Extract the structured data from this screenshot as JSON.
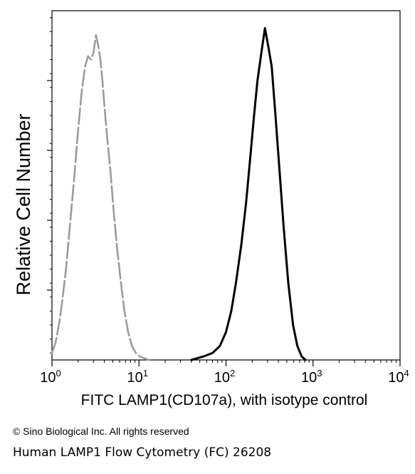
{
  "chart_data": {
    "type": "line",
    "xlabel": "FITC LAMP1(CD107a), with isotype control",
    "ylabel": "Relative Cell Number",
    "x_scale": "log",
    "xlim": [
      1,
      10000
    ],
    "ylim": [
      0,
      1
    ],
    "x_ticks": [
      {
        "value": 1,
        "base": "10",
        "exp": "0"
      },
      {
        "value": 10,
        "base": "10",
        "exp": "1"
      },
      {
        "value": 100,
        "base": "10",
        "exp": "2"
      },
      {
        "value": 1000,
        "base": "10",
        "exp": "3"
      },
      {
        "value": 10000,
        "base": "10",
        "exp": "4"
      }
    ],
    "grid": false,
    "series": [
      {
        "style": "dashed",
        "color": "#9b9b9b",
        "x": [
          1.0,
          1.1,
          1.2,
          1.3,
          1.45,
          1.6,
          1.8,
          2.0,
          2.2,
          2.4,
          2.6,
          2.8,
          3.0,
          3.2,
          3.4,
          3.6,
          3.8,
          4.0,
          4.3,
          4.7,
          5.1,
          5.6,
          6.2,
          6.8,
          7.5,
          8.3,
          9.2,
          10.2,
          11.5,
          13.0
        ],
        "y": [
          0.02,
          0.05,
          0.1,
          0.16,
          0.26,
          0.38,
          0.52,
          0.66,
          0.77,
          0.84,
          0.87,
          0.86,
          0.88,
          0.93,
          0.9,
          0.86,
          0.8,
          0.73,
          0.64,
          0.54,
          0.43,
          0.32,
          0.22,
          0.14,
          0.08,
          0.04,
          0.02,
          0.01,
          0.005,
          0.0
        ]
      },
      {
        "style": "solid",
        "color": "#000000",
        "x": [
          40,
          55,
          70,
          85,
          100,
          115,
          130,
          150,
          170,
          190,
          210,
          230,
          255,
          280,
          305,
          335,
          370,
          410,
          460,
          520,
          590,
          660,
          740,
          820
        ],
        "y": [
          0.0,
          0.01,
          0.02,
          0.04,
          0.08,
          0.14,
          0.22,
          0.33,
          0.45,
          0.58,
          0.7,
          0.8,
          0.88,
          0.95,
          0.9,
          0.84,
          0.7,
          0.55,
          0.38,
          0.22,
          0.1,
          0.04,
          0.01,
          0.0
        ]
      }
    ]
  },
  "footer": {
    "copyright": "© Sino Biological Inc. All rights reserved",
    "caption": "Human LAMP1 Flow Cytometry (FC) 26208"
  }
}
